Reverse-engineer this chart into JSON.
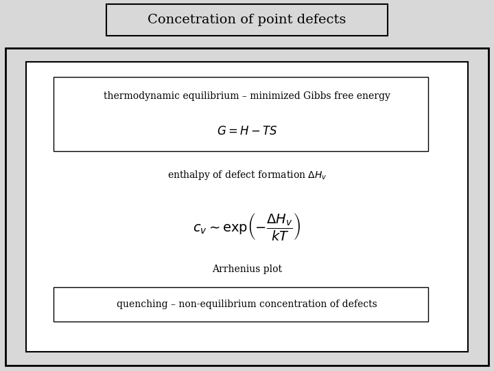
{
  "title": "Concetration of point defects",
  "title_fontsize": 14,
  "bg_color": "#d8d8d8",
  "bg_white": "#ffffff",
  "box1_text": "thermodynamic equilibrium – minimized Gibbs free energy",
  "box1_formula": "$G = H - TS$",
  "enthalpy_text": "enthalpy of defect formation $\\Delta H_v$",
  "formula_cv": "$c_v \\sim \\mathrm{exp}\\left(-\\dfrac{\\Delta H_v}{kT}\\right)$",
  "arrhenius_text": "Arrhenius plot",
  "box2_text": "quenching – non-equilibrium concentration of defects",
  "text_fontsize": 10,
  "formula_fontsize": 12
}
